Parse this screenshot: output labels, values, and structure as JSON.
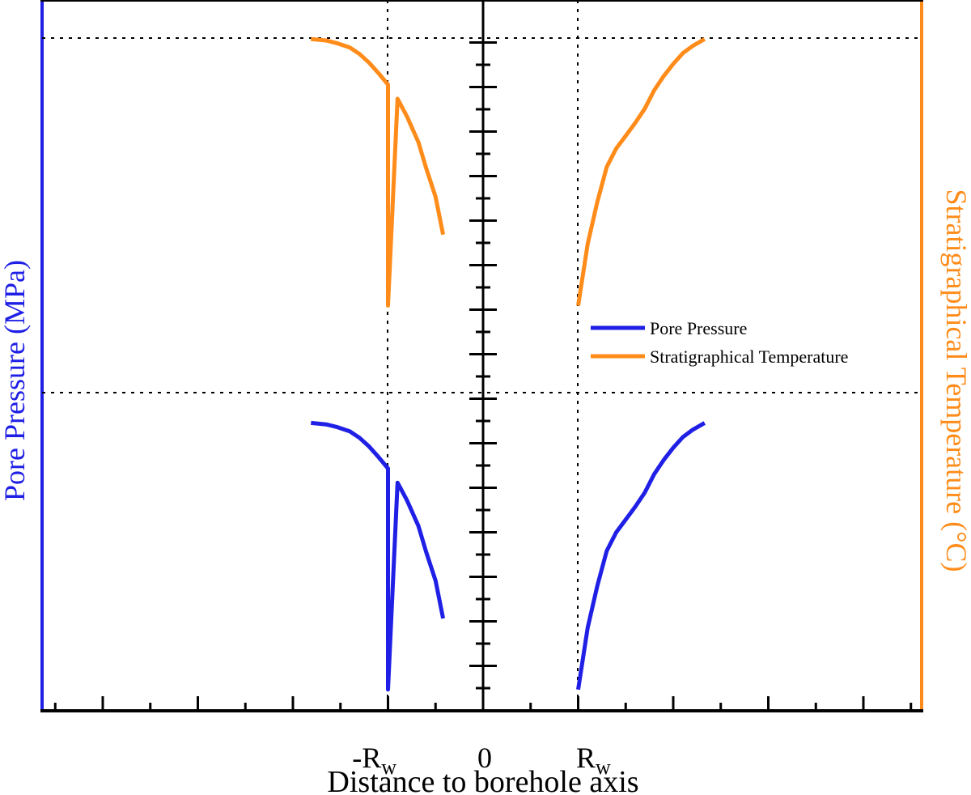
{
  "colors": {
    "pore_pressure": "#1f1fe6",
    "temperature": "#ff8c1a",
    "axis": "#000000"
  },
  "labels": {
    "xlabel": "Distance to borehole axis",
    "ylabel_left": "Pore Pressure (MPa)",
    "ylabel_right": "Stratigraphical Temperature (°C)",
    "tick_neg_rw_main": "-R",
    "tick_rw_main": "R",
    "tick_rw_sub": "w",
    "tick_zero": "0"
  },
  "legend": {
    "placement": "right-middle",
    "items": [
      {
        "label": "Pore Pressure",
        "color_key": "pore_pressure"
      },
      {
        "label": "Stratigraphical Temperature",
        "color_key": "temperature"
      }
    ]
  },
  "chart_data": {
    "type": "line",
    "title": "",
    "xlabel": "Distance to borehole axis",
    "ylabel": "Pore Pressure (MPa)",
    "ylabel_right": "Stratigraphical Temperature (°C)",
    "xlim": [
      -2.3,
      2.3
    ],
    "ylim": [
      0,
      1
    ],
    "grid": false,
    "reference_lines": {
      "vertical_at_x": [
        -1,
        1
      ],
      "horizontal_at_y": [
        0.405,
        0.955
      ]
    },
    "series": [
      {
        "name": "Pore Pressure",
        "color_key": "pore_pressure",
        "segments": [
          [
            [
              -1.81,
              0.405
            ],
            [
              -1.65,
              0.403
            ],
            [
              -1.53,
              0.399
            ],
            [
              -1.4,
              0.393
            ],
            [
              -1.3,
              0.384
            ],
            [
              -1.2,
              0.372
            ],
            [
              -1.1,
              0.357
            ],
            [
              -1.0,
              0.341
            ],
            [
              -0.9,
              0.321
            ],
            [
              -0.8,
              0.296
            ],
            [
              -0.68,
              0.26
            ],
            [
              -0.6,
              0.224
            ],
            [
              -0.5,
              0.183
            ],
            [
              -0.42,
              0.13
            ],
            [
              -1.0,
              0.03
            ]
          ],
          [
            [
              1.0,
              0.03
            ],
            [
              1.1,
              0.117
            ],
            [
              1.2,
              0.175
            ],
            [
              1.3,
              0.225
            ],
            [
              1.4,
              0.251
            ],
            [
              1.5,
              0.269
            ],
            [
              1.6,
              0.287
            ],
            [
              1.7,
              0.307
            ],
            [
              1.8,
              0.333
            ],
            [
              1.9,
              0.353
            ],
            [
              2.0,
              0.37
            ],
            [
              2.1,
              0.385
            ],
            [
              2.2,
              0.395
            ],
            [
              2.33,
              0.405
            ]
          ]
        ]
      },
      {
        "name": "Stratigraphical Temperature",
        "color_key": "temperature",
        "segments": [
          [
            [
              -1.81,
              0.945
            ],
            [
              -1.65,
              0.943
            ],
            [
              -1.53,
              0.939
            ],
            [
              -1.4,
              0.933
            ],
            [
              -1.3,
              0.924
            ],
            [
              -1.2,
              0.912
            ],
            [
              -1.1,
              0.897
            ],
            [
              -1.0,
              0.881
            ],
            [
              -0.9,
              0.861
            ],
            [
              -0.8,
              0.836
            ],
            [
              -0.68,
              0.8
            ],
            [
              -0.6,
              0.764
            ],
            [
              -0.5,
              0.723
            ],
            [
              -0.42,
              0.67
            ],
            [
              -1.0,
              0.57
            ]
          ],
          [
            [
              1.0,
              0.57
            ],
            [
              1.1,
              0.657
            ],
            [
              1.2,
              0.715
            ],
            [
              1.3,
              0.765
            ],
            [
              1.4,
              0.791
            ],
            [
              1.5,
              0.809
            ],
            [
              1.6,
              0.827
            ],
            [
              1.7,
              0.847
            ],
            [
              1.8,
              0.873
            ],
            [
              1.9,
              0.893
            ],
            [
              2.0,
              0.91
            ],
            [
              2.1,
              0.925
            ],
            [
              2.2,
              0.935
            ],
            [
              2.33,
              0.945
            ]
          ]
        ]
      }
    ]
  }
}
